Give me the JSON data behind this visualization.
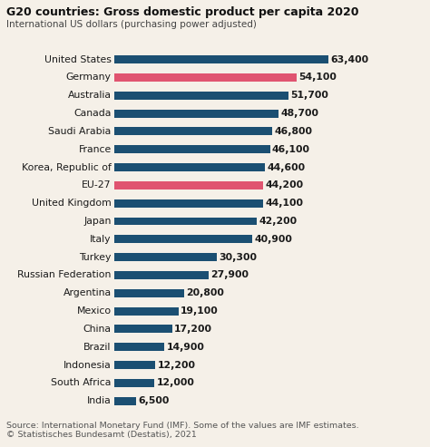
{
  "title": "G20 countries: Gross domestic product per capita 2020",
  "subtitle": "International US dollars (purchasing power adjusted)",
  "categories": [
    "United States",
    "Germany",
    "Australia",
    "Canada",
    "Saudi Arabia",
    "France",
    "Korea, Republic of",
    "EU-27",
    "United Kingdom",
    "Japan",
    "Italy",
    "Turkey",
    "Russian Federation",
    "Argentina",
    "Mexico",
    "China",
    "Brazil",
    "Indonesia",
    "South Africa",
    "India"
  ],
  "values": [
    63400,
    54100,
    51700,
    48700,
    46800,
    46100,
    44600,
    44200,
    44100,
    42200,
    40900,
    30300,
    27900,
    20800,
    19100,
    17200,
    14900,
    12200,
    12000,
    6500
  ],
  "colors": [
    "#1b4f72",
    "#e05470",
    "#1b4f72",
    "#1b4f72",
    "#1b4f72",
    "#1b4f72",
    "#1b4f72",
    "#e05470",
    "#1b4f72",
    "#1b4f72",
    "#1b4f72",
    "#1b4f72",
    "#1b4f72",
    "#1b4f72",
    "#1b4f72",
    "#1b4f72",
    "#1b4f72",
    "#1b4f72",
    "#1b4f72",
    "#1b4f72"
  ],
  "source_text": "Source: International Monetary Fund (IMF). Some of the values are IMF estimates.",
  "source_text2": "©️ Statistisches Bundesamt (Destatis), 2021",
  "bg_color": "#f5f0e8",
  "bar_height": 0.45,
  "xlim_max": 68000,
  "title_fontsize": 9.0,
  "subtitle_fontsize": 7.5,
  "label_fontsize": 7.8,
  "value_fontsize": 7.8,
  "source_fontsize": 6.8
}
